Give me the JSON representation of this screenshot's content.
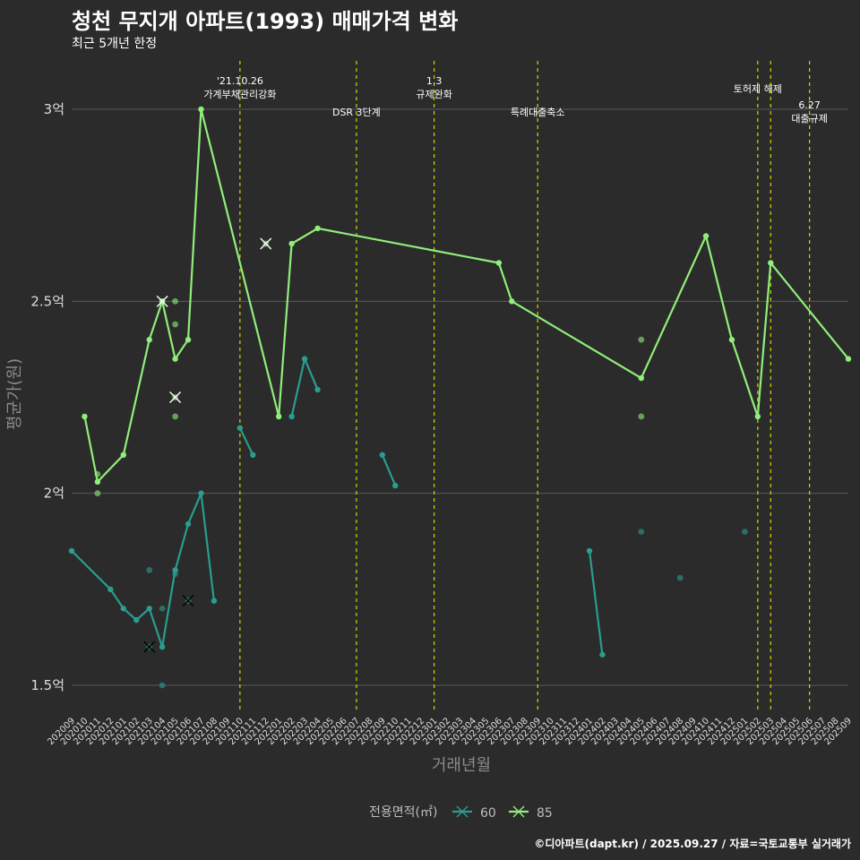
{
  "title": "청천 무지개 아파트(1993) 매매가격 변화",
  "subtitle": "최근 5개년 한정",
  "caption": "©디아파트(dapt.kr) / 2025.09.27 / 자료=국토교통부 실거래가",
  "colors": {
    "background": "#2b2b2b",
    "grid": "#5a5a5a",
    "event_line": "#d4d400",
    "series_60": "#2a9d8f",
    "series_85": "#90ee7a"
  },
  "chart_data": {
    "type": "line",
    "xlabel": "거래년월",
    "ylabel": "평균가(원)",
    "ylim": [
      1.43,
      3.14
    ],
    "yticks": [
      {
        "value": 1.5,
        "label": "1.5억"
      },
      {
        "value": 2.0,
        "label": "2억"
      },
      {
        "value": 2.5,
        "label": "2.5억"
      },
      {
        "value": 3.0,
        "label": "3억"
      }
    ],
    "x_months": [
      "202009",
      "202010",
      "202011",
      "202012",
      "202101",
      "202102",
      "202103",
      "202104",
      "202105",
      "202106",
      "202107",
      "202108",
      "202109",
      "202110",
      "202111",
      "202112",
      "202201",
      "202202",
      "202203",
      "202204",
      "202205",
      "202206",
      "202207",
      "202208",
      "202209",
      "202210",
      "202211",
      "202212",
      "202301",
      "202302",
      "202303",
      "202304",
      "202305",
      "202306",
      "202307",
      "202308",
      "202309",
      "202310",
      "202311",
      "202312",
      "202401",
      "202402",
      "202403",
      "202404",
      "202405",
      "202406",
      "202407",
      "202408",
      "202409",
      "202410",
      "202411",
      "202412",
      "202501",
      "202502",
      "202503",
      "202504",
      "202505",
      "202506",
      "202507",
      "202508",
      "202509"
    ],
    "grid": true,
    "legend": {
      "title": "전용면적(㎡)",
      "position": "bottom"
    },
    "events": [
      {
        "month": "202110",
        "label_lines": [
          "'21.10.26",
          "가계부채관리강화"
        ],
        "label_level": "high"
      },
      {
        "month": "202207",
        "label_lines": [
          "DSR 3단계"
        ],
        "label_level": "low"
      },
      {
        "month": "202301",
        "label_lines": [
          "1.3",
          "규제완화"
        ],
        "label_level": "high"
      },
      {
        "month": "202309",
        "label_lines": [
          "특례대출축소"
        ],
        "label_level": "low"
      },
      {
        "month": "202502",
        "label_lines": [
          "토허제 해제"
        ],
        "label_level": "mid"
      },
      {
        "month": "202503",
        "label_lines": [],
        "label_level": "none"
      },
      {
        "month": "202506",
        "label_lines": [
          "6.27",
          "대출규제"
        ],
        "label_level": "lower"
      }
    ],
    "series": [
      {
        "name": "60",
        "segments": [
          [
            [
              "202009",
              1.85
            ],
            [
              "202012",
              1.75
            ],
            [
              "202101",
              1.7
            ],
            [
              "202102",
              1.67
            ],
            [
              "202103",
              1.7
            ],
            [
              "202104",
              1.6
            ],
            [
              "202105",
              1.8
            ],
            [
              "202106",
              1.92
            ],
            [
              "202107",
              2.0
            ],
            [
              "202108",
              1.72
            ]
          ],
          [
            [
              "202110",
              2.17
            ],
            [
              "202111",
              2.1
            ]
          ],
          [
            [
              "202202",
              2.2
            ],
            [
              "202203",
              2.35
            ],
            [
              "202204",
              2.27
            ]
          ],
          [
            [
              "202209",
              2.1
            ],
            [
              "202210",
              2.02
            ]
          ],
          [
            [
              "202401",
              1.85
            ],
            [
              "202402",
              1.58
            ]
          ]
        ],
        "points": [
          [
            "202103",
            1.8
          ],
          [
            "202104",
            1.7
          ],
          [
            "202104",
            1.5
          ],
          [
            "202105",
            1.79
          ],
          [
            "202405",
            1.9
          ],
          [
            "202408",
            1.78
          ],
          [
            "202501",
            1.9
          ]
        ],
        "cross_points": [
          [
            "202103",
            1.6
          ],
          [
            "202106",
            1.72
          ]
        ]
      },
      {
        "name": "85",
        "segments": [
          [
            [
              "202010",
              2.2
            ],
            [
              "202011",
              2.03
            ],
            [
              "202101",
              2.1
            ],
            [
              "202103",
              2.4
            ],
            [
              "202104",
              2.5
            ],
            [
              "202105",
              2.35
            ],
            [
              "202106",
              2.4
            ],
            [
              "202107",
              3.0
            ],
            [
              "202201",
              2.2
            ],
            [
              "202202",
              2.65
            ],
            [
              "202204",
              2.69
            ],
            [
              "202306",
              2.6
            ],
            [
              "202307",
              2.5
            ],
            [
              "202405",
              2.3
            ],
            [
              "202410",
              2.67
            ],
            [
              "202412",
              2.4
            ],
            [
              "202502",
              2.2
            ],
            [
              "202503",
              2.6
            ],
            [
              "202509",
              2.35
            ]
          ]
        ],
        "points": [
          [
            "202011",
            2.05
          ],
          [
            "202011",
            2.0
          ],
          [
            "202105",
            2.5
          ],
          [
            "202105",
            2.44
          ],
          [
            "202105",
            2.2
          ],
          [
            "202405",
            2.4
          ],
          [
            "202405",
            2.2
          ]
        ],
        "cross_points": [
          [
            "202104",
            2.5
          ],
          [
            "202105",
            2.25
          ],
          [
            "202112",
            2.65
          ]
        ]
      }
    ]
  }
}
